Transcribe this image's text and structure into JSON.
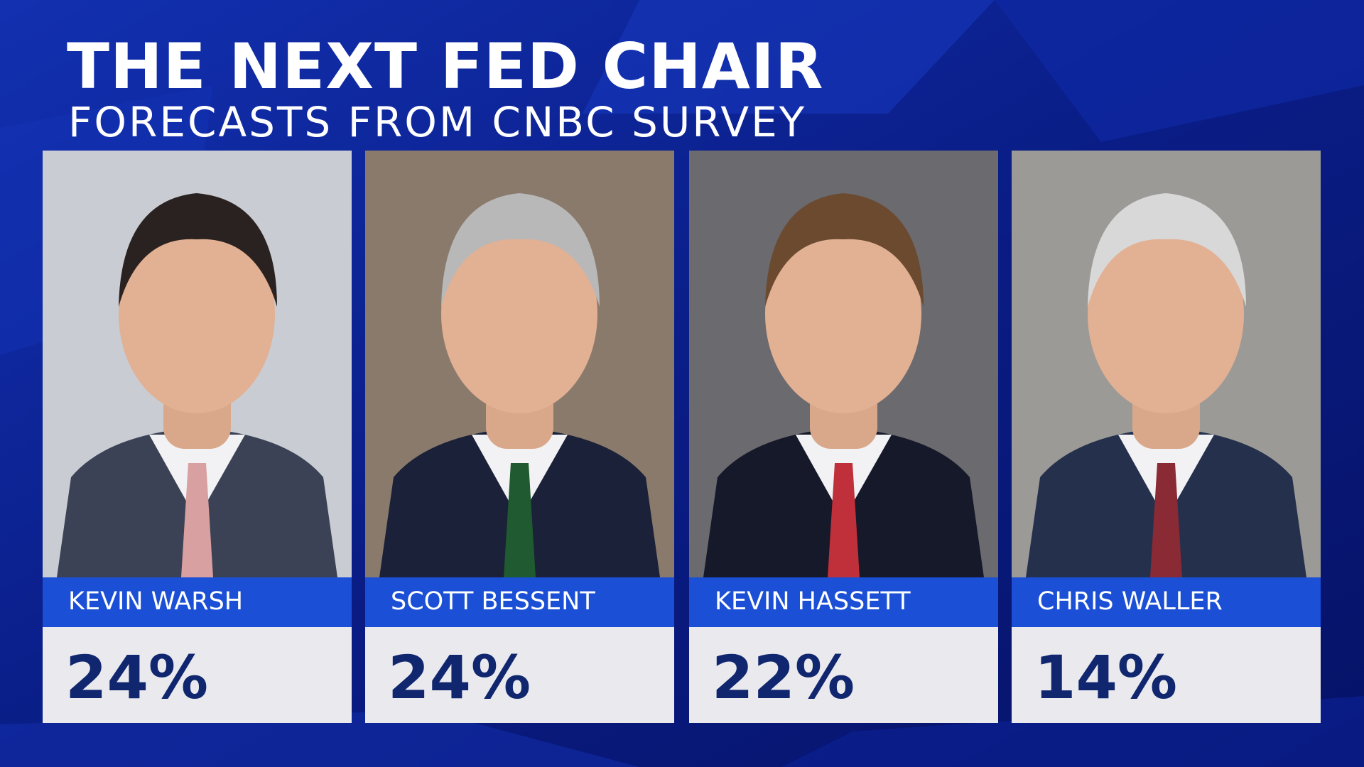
{
  "header": {
    "title": "THE NEXT FED CHAIR",
    "subtitle": "FORECASTS FROM CNBC SURVEY"
  },
  "cards": [
    {
      "name": "KEVIN WARSH",
      "value": "24%"
    },
    {
      "name": "SCOTT BESSENT",
      "value": "24%"
    },
    {
      "name": "KEVIN HASSETT",
      "value": "22%"
    },
    {
      "name": "CHRIS WALLER",
      "value": "14%"
    }
  ]
}
